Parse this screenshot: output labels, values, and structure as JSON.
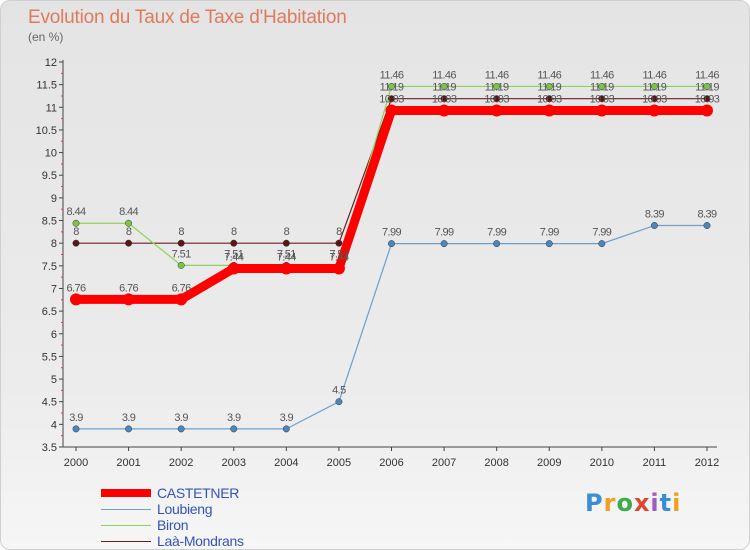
{
  "page": {
    "title": "Evolution du Taux de Taxe d'Habitation",
    "subtitle": "(en %)"
  },
  "logo": {
    "text": "Proxiti",
    "letters": [
      "P",
      "r",
      "o",
      "x",
      "i",
      "t",
      "i"
    ]
  },
  "chart_data": {
    "type": "line",
    "title": "Evolution du Taux de Taxe d'Habitation",
    "ylabel": "(en %)",
    "xlabel": "",
    "x": [
      "2000",
      "2001",
      "2002",
      "2003",
      "2004",
      "2005",
      "2006",
      "2007",
      "2008",
      "2009",
      "2010",
      "2011",
      "2012"
    ],
    "ylim": [
      3.5,
      12
    ],
    "yticks": [
      "3.5",
      "4",
      "4.5",
      "5",
      "5.5",
      "6",
      "6.5",
      "7",
      "7.5",
      "8",
      "8.5",
      "9",
      "9.5",
      "10",
      "10.5",
      "11",
      "11.5",
      "12"
    ],
    "grid": false,
    "legend_position": "bottom-left",
    "series": [
      {
        "name": "Loubieng",
        "color": "#6fa0cc",
        "marker_color": "#4a86c0",
        "values": [
          3.9,
          3.9,
          3.9,
          3.9,
          3.9,
          4.5,
          7.99,
          7.99,
          7.99,
          7.99,
          7.99,
          8.39,
          8.39
        ],
        "labels": [
          "3.9",
          "3.9",
          "3.9",
          "3.9",
          "3.9",
          "4.5",
          "7.99",
          "7.99",
          "7.99",
          "7.99",
          "7.99",
          "8.39",
          "8.39"
        ]
      },
      {
        "name": "Laà-Mondrans",
        "color": "#6b2020",
        "marker_color": "#5a1515",
        "values": [
          8,
          8,
          8,
          8,
          8,
          8,
          11.19,
          11.19,
          11.19,
          11.19,
          11.19,
          11.19,
          11.19
        ],
        "labels": [
          "8",
          "8",
          "8",
          "8",
          "8",
          "8",
          "11.19",
          "11.19",
          "11.19",
          "11.19",
          "11.19",
          "11.19",
          "11.19"
        ]
      },
      {
        "name": "Biron",
        "color": "#8ed45a",
        "marker_color": "#7cc448",
        "values": [
          8.44,
          8.44,
          7.51,
          7.51,
          7.51,
          7.51,
          11.46,
          11.46,
          11.46,
          11.46,
          11.46,
          11.46,
          11.46
        ],
        "labels": [
          "8.44",
          "8.44",
          "7.51",
          "7.51",
          "7.51",
          "7.51",
          "11.46",
          "11.46",
          "11.46",
          "11.46",
          "11.46",
          "11.46",
          "11.46"
        ]
      },
      {
        "name": "CASTETNER",
        "color": "#ff0000",
        "marker_color": "#ff0000",
        "values": [
          6.76,
          6.76,
          6.76,
          7.44,
          7.44,
          7.44,
          10.93,
          10.93,
          10.93,
          10.93,
          10.93,
          10.93,
          10.93
        ],
        "labels": [
          "6.76",
          "6.76",
          "6.76",
          "7.44",
          "7.44",
          "7.44",
          "10.93",
          "10.93",
          "10.93",
          "10.93",
          "10.93",
          "10.93",
          "10.93"
        ]
      }
    ],
    "legend_order": [
      "CASTETNER",
      "Loubieng",
      "Biron",
      "Laà-Mondrans"
    ]
  }
}
